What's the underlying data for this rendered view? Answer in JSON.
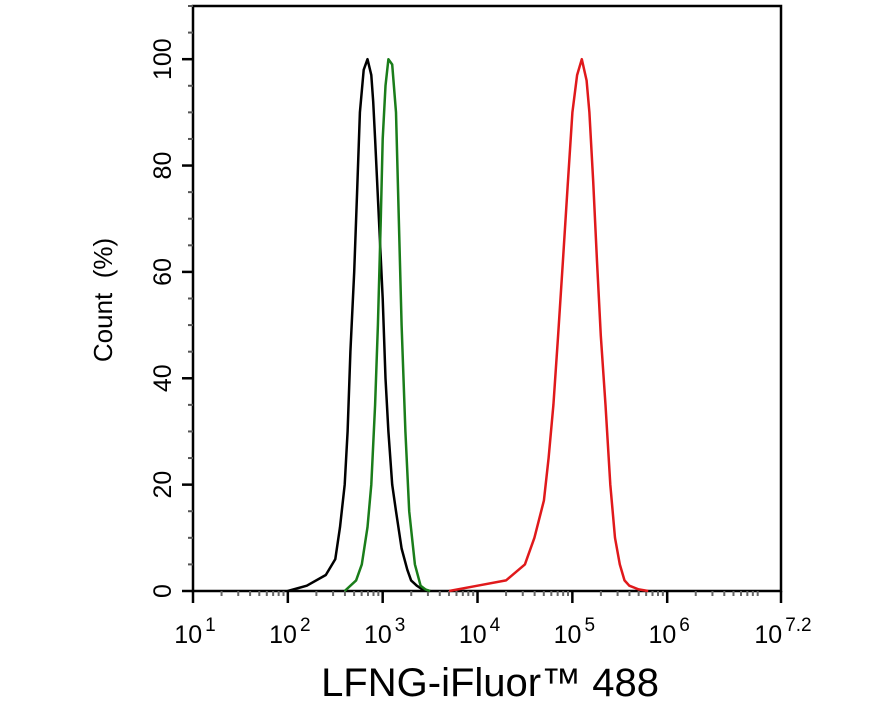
{
  "chart_data": {
    "type": "line",
    "title": "",
    "xlabel": "LFNG-iFluor™ 488",
    "ylabel": "Count  (%)",
    "xscale": "log",
    "xlim_log10": [
      1,
      7.2
    ],
    "ylim": [
      0,
      110
    ],
    "x_ticks": [
      {
        "exp": "1",
        "value_log10": 1
      },
      {
        "exp": "2",
        "value_log10": 2
      },
      {
        "exp": "3",
        "value_log10": 3
      },
      {
        "exp": "4",
        "value_log10": 4
      },
      {
        "exp": "5",
        "value_log10": 5
      },
      {
        "exp": "6",
        "value_log10": 6
      },
      {
        "exp": "7.2",
        "value_log10": 7.2
      }
    ],
    "y_ticks": [
      0,
      20,
      40,
      60,
      80,
      100
    ],
    "grid": false,
    "legend": null,
    "series": [
      {
        "name": "black",
        "color": "#000000",
        "x_log10": [
          2.0,
          2.2,
          2.4,
          2.5,
          2.55,
          2.6,
          2.63,
          2.66,
          2.7,
          2.73,
          2.76,
          2.8,
          2.84,
          2.88,
          2.9,
          2.92,
          2.96,
          3.0,
          3.03,
          3.06,
          3.1,
          3.14,
          3.2,
          3.26,
          3.3,
          3.36,
          3.42,
          3.5
        ],
        "y": [
          0,
          1,
          3,
          6,
          12,
          20,
          30,
          45,
          60,
          75,
          90,
          98,
          100,
          97,
          92,
          85,
          70,
          55,
          40,
          30,
          20,
          15,
          8,
          4,
          2,
          1,
          0.3,
          0
        ]
      },
      {
        "name": "green",
        "color": "#1a7d1a",
        "x_log10": [
          2.6,
          2.72,
          2.78,
          2.84,
          2.88,
          2.92,
          2.95,
          2.98,
          3.0,
          3.03,
          3.06,
          3.1,
          3.14,
          3.17,
          3.2,
          3.24,
          3.28,
          3.34,
          3.4,
          3.45,
          3.5
        ],
        "y": [
          0,
          2,
          5,
          12,
          20,
          35,
          50,
          70,
          85,
          95,
          100,
          99,
          90,
          70,
          50,
          30,
          15,
          5,
          1,
          0.3,
          0
        ]
      },
      {
        "name": "red",
        "color": "#e0191b",
        "x_log10": [
          3.7,
          4.0,
          4.3,
          4.5,
          4.6,
          4.7,
          4.75,
          4.8,
          4.85,
          4.9,
          4.95,
          5.0,
          5.05,
          5.1,
          5.15,
          5.18,
          5.22,
          5.26,
          5.3,
          5.35,
          5.4,
          5.45,
          5.5,
          5.55,
          5.6,
          5.7,
          5.8
        ],
        "y": [
          0,
          1,
          2,
          5,
          10,
          17,
          25,
          35,
          48,
          62,
          76,
          90,
          97,
          100,
          96,
          90,
          77,
          62,
          48,
          35,
          20,
          10,
          5,
          2,
          1,
          0.3,
          0
        ]
      }
    ]
  },
  "axes": {
    "x_title": "LFNG-iFluor™ 488",
    "y_title": "Count  (%)",
    "x_tick_base": "10",
    "x_tick_labels": [
      "1",
      "2",
      "3",
      "4",
      "5",
      "6",
      "7.2"
    ],
    "y_tick_labels": [
      "0",
      "20",
      "40",
      "60",
      "80",
      "100"
    ]
  }
}
